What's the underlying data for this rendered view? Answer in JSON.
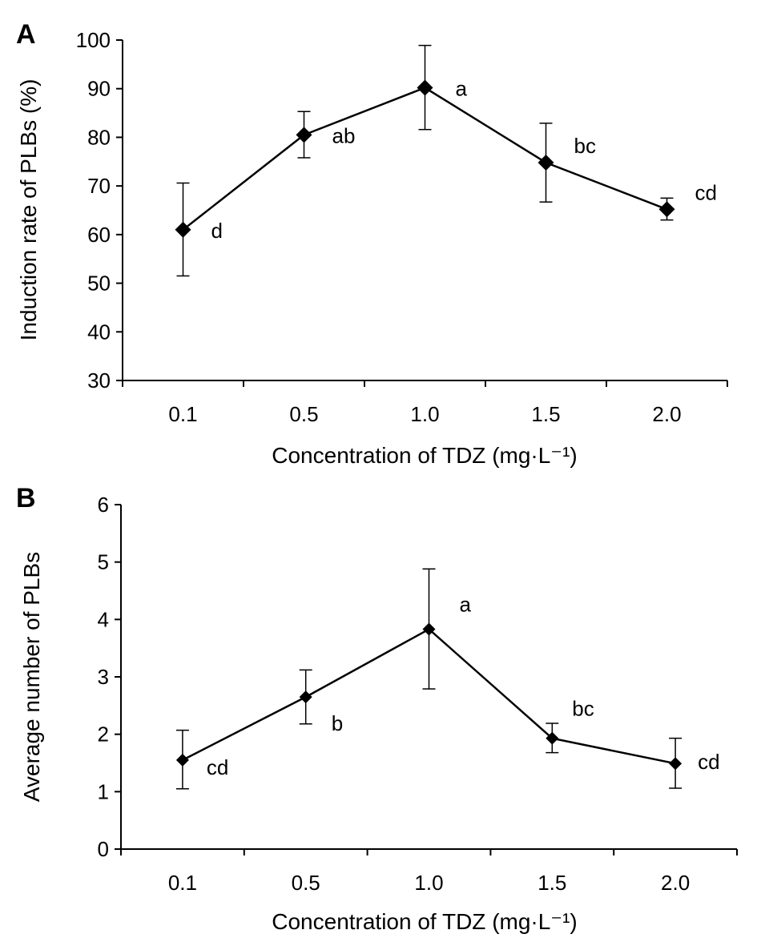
{
  "chart_data": [
    {
      "type": "line",
      "panel_label": "A",
      "title": "",
      "xlabel": "Concentration of TDZ (mg·L⁻¹)",
      "ylabel": "Induction rate of PLBs (%)",
      "categories": [
        "0.1",
        "0.5",
        "1.0",
        "1.5",
        "2.0"
      ],
      "ylim": [
        30,
        100
      ],
      "yticks": [
        30,
        40,
        50,
        60,
        70,
        80,
        90,
        100
      ],
      "grid": false,
      "marker": "diamond",
      "series": [
        {
          "values": [
            61,
            80.5,
            90.2,
            74.8,
            65.2
          ],
          "err_upper": [
            70.6,
            85.3,
            98.9,
            82.9,
            67.5
          ],
          "err_lower": [
            51.5,
            75.8,
            81.6,
            66.7,
            63.0
          ],
          "labels": [
            "d",
            "ab",
            "a",
            "bc",
            "cd"
          ]
        }
      ]
    },
    {
      "type": "line",
      "panel_label": "B",
      "title": "",
      "xlabel": "Concentration of TDZ (mg·L⁻¹)",
      "ylabel": "Average number of  PLBs",
      "categories": [
        "0.1",
        "0.5",
        "1.0",
        "1.5",
        "2.0"
      ],
      "ylim": [
        0,
        6
      ],
      "yticks": [
        0,
        1,
        2,
        3,
        4,
        5,
        6
      ],
      "grid": false,
      "marker": "diamond",
      "series": [
        {
          "values": [
            1.55,
            2.65,
            3.83,
            1.93,
            1.49
          ],
          "err_upper": [
            2.07,
            3.12,
            4.88,
            2.19,
            1.93
          ],
          "err_lower": [
            1.05,
            2.18,
            2.79,
            1.68,
            1.06
          ],
          "labels": [
            "cd",
            "b",
            "a",
            "bc",
            "cd"
          ]
        }
      ]
    }
  ]
}
